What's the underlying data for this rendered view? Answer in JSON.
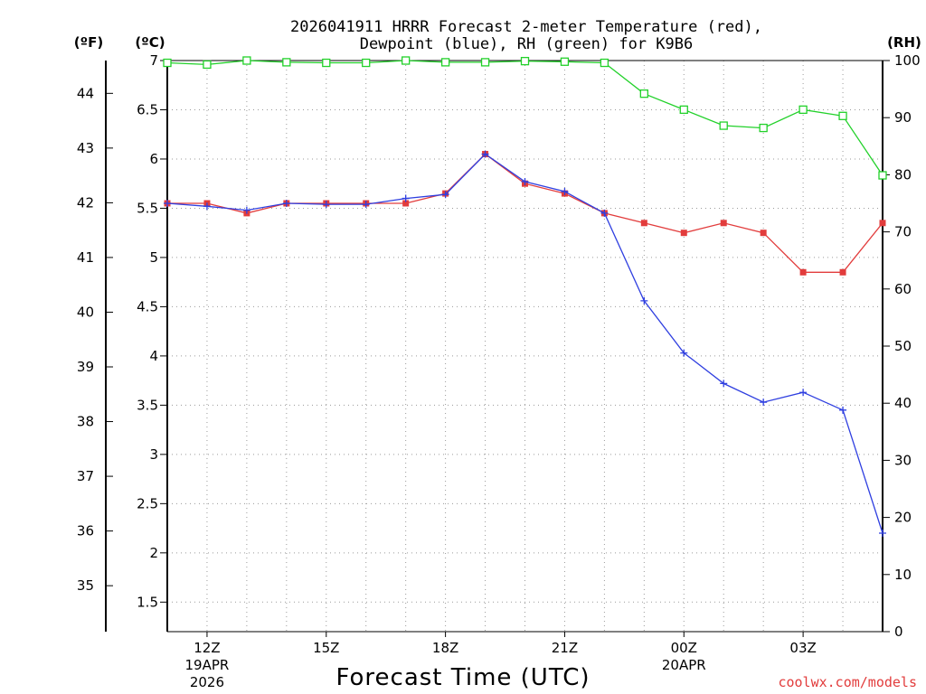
{
  "title_line1": "2026041911 HRRR Forecast 2-meter Temperature (red),",
  "title_line2": "Dewpoint (blue), RH (green) for K9B6",
  "unit_f": "(ºF)",
  "unit_c": "(ºC)",
  "unit_rh": "(RH)",
  "xlabel": "Forecast Time (UTC)",
  "credit": "coolwx.com/models",
  "colors": {
    "temperature": "#e23c3c",
    "dewpoint": "#2f3fe0",
    "rh": "#22d12a"
  },
  "chart_data": {
    "type": "line",
    "x_hours": [
      11,
      12,
      13,
      14,
      15,
      16,
      17,
      18,
      19,
      20,
      21,
      22,
      23,
      24,
      25,
      26,
      27,
      28,
      29
    ],
    "x_ticks": [
      {
        "hour": 12,
        "label": "12Z",
        "sub1": "19APR",
        "sub2": "2026"
      },
      {
        "hour": 15,
        "label": "15Z",
        "sub1": "",
        "sub2": ""
      },
      {
        "hour": 18,
        "label": "18Z",
        "sub1": "",
        "sub2": ""
      },
      {
        "hour": 21,
        "label": "21Z",
        "sub1": "",
        "sub2": ""
      },
      {
        "hour": 24,
        "label": "00Z",
        "sub1": "20APR",
        "sub2": ""
      },
      {
        "hour": 27,
        "label": "03Z",
        "sub1": "",
        "sub2": ""
      }
    ],
    "celsius_axis": {
      "min": 1.2,
      "max": 7.0,
      "ticks": [
        1.5,
        2,
        2.5,
        3,
        3.5,
        4,
        4.5,
        5,
        5.5,
        6,
        6.5,
        7
      ],
      "tick_labels": [
        "1.5",
        "2",
        "2.5",
        "3",
        "3.5",
        "4",
        "4.5",
        "5",
        "5.5",
        "6",
        "6.5",
        "7"
      ]
    },
    "fahrenheit_ticks": [
      35,
      36,
      37,
      38,
      39,
      40,
      41,
      42,
      43,
      44
    ],
    "fahrenheit_tick_labels": [
      "35",
      "36",
      "37",
      "38",
      "39",
      "40",
      "41",
      "42",
      "43",
      "44"
    ],
    "rh_axis": {
      "min": 0,
      "max": 100,
      "ticks": [
        0,
        10,
        20,
        30,
        40,
        50,
        60,
        70,
        80,
        90,
        100
      ],
      "tick_labels": [
        "0",
        "10",
        "20",
        "30",
        "40",
        "50",
        "60",
        "70",
        "80",
        "90",
        "100"
      ]
    },
    "series": [
      {
        "name": "Temperature",
        "unit": "C",
        "marker": "square",
        "values": [
          5.55,
          5.55,
          5.45,
          5.55,
          5.55,
          5.55,
          5.55,
          5.65,
          6.05,
          5.75,
          5.65,
          5.45,
          5.35,
          5.25,
          5.35,
          5.25,
          4.85,
          4.85,
          5.35
        ]
      },
      {
        "name": "Dewpoint",
        "unit": "C",
        "marker": "plus",
        "values": [
          5.55,
          5.52,
          5.48,
          5.55,
          5.54,
          5.54,
          5.6,
          5.64,
          6.05,
          5.77,
          5.67,
          5.45,
          4.56,
          4.03,
          3.72,
          3.53,
          3.63,
          3.45,
          2.2
        ]
      },
      {
        "name": "RH",
        "unit": "%",
        "marker": "open-square",
        "values": [
          99.6,
          99.3,
          100,
          99.7,
          99.6,
          99.6,
          100,
          99.7,
          99.7,
          99.9,
          99.8,
          99.6,
          94.2,
          91.4,
          88.6,
          88.2,
          91.4,
          90.3,
          79.9
        ]
      }
    ]
  }
}
